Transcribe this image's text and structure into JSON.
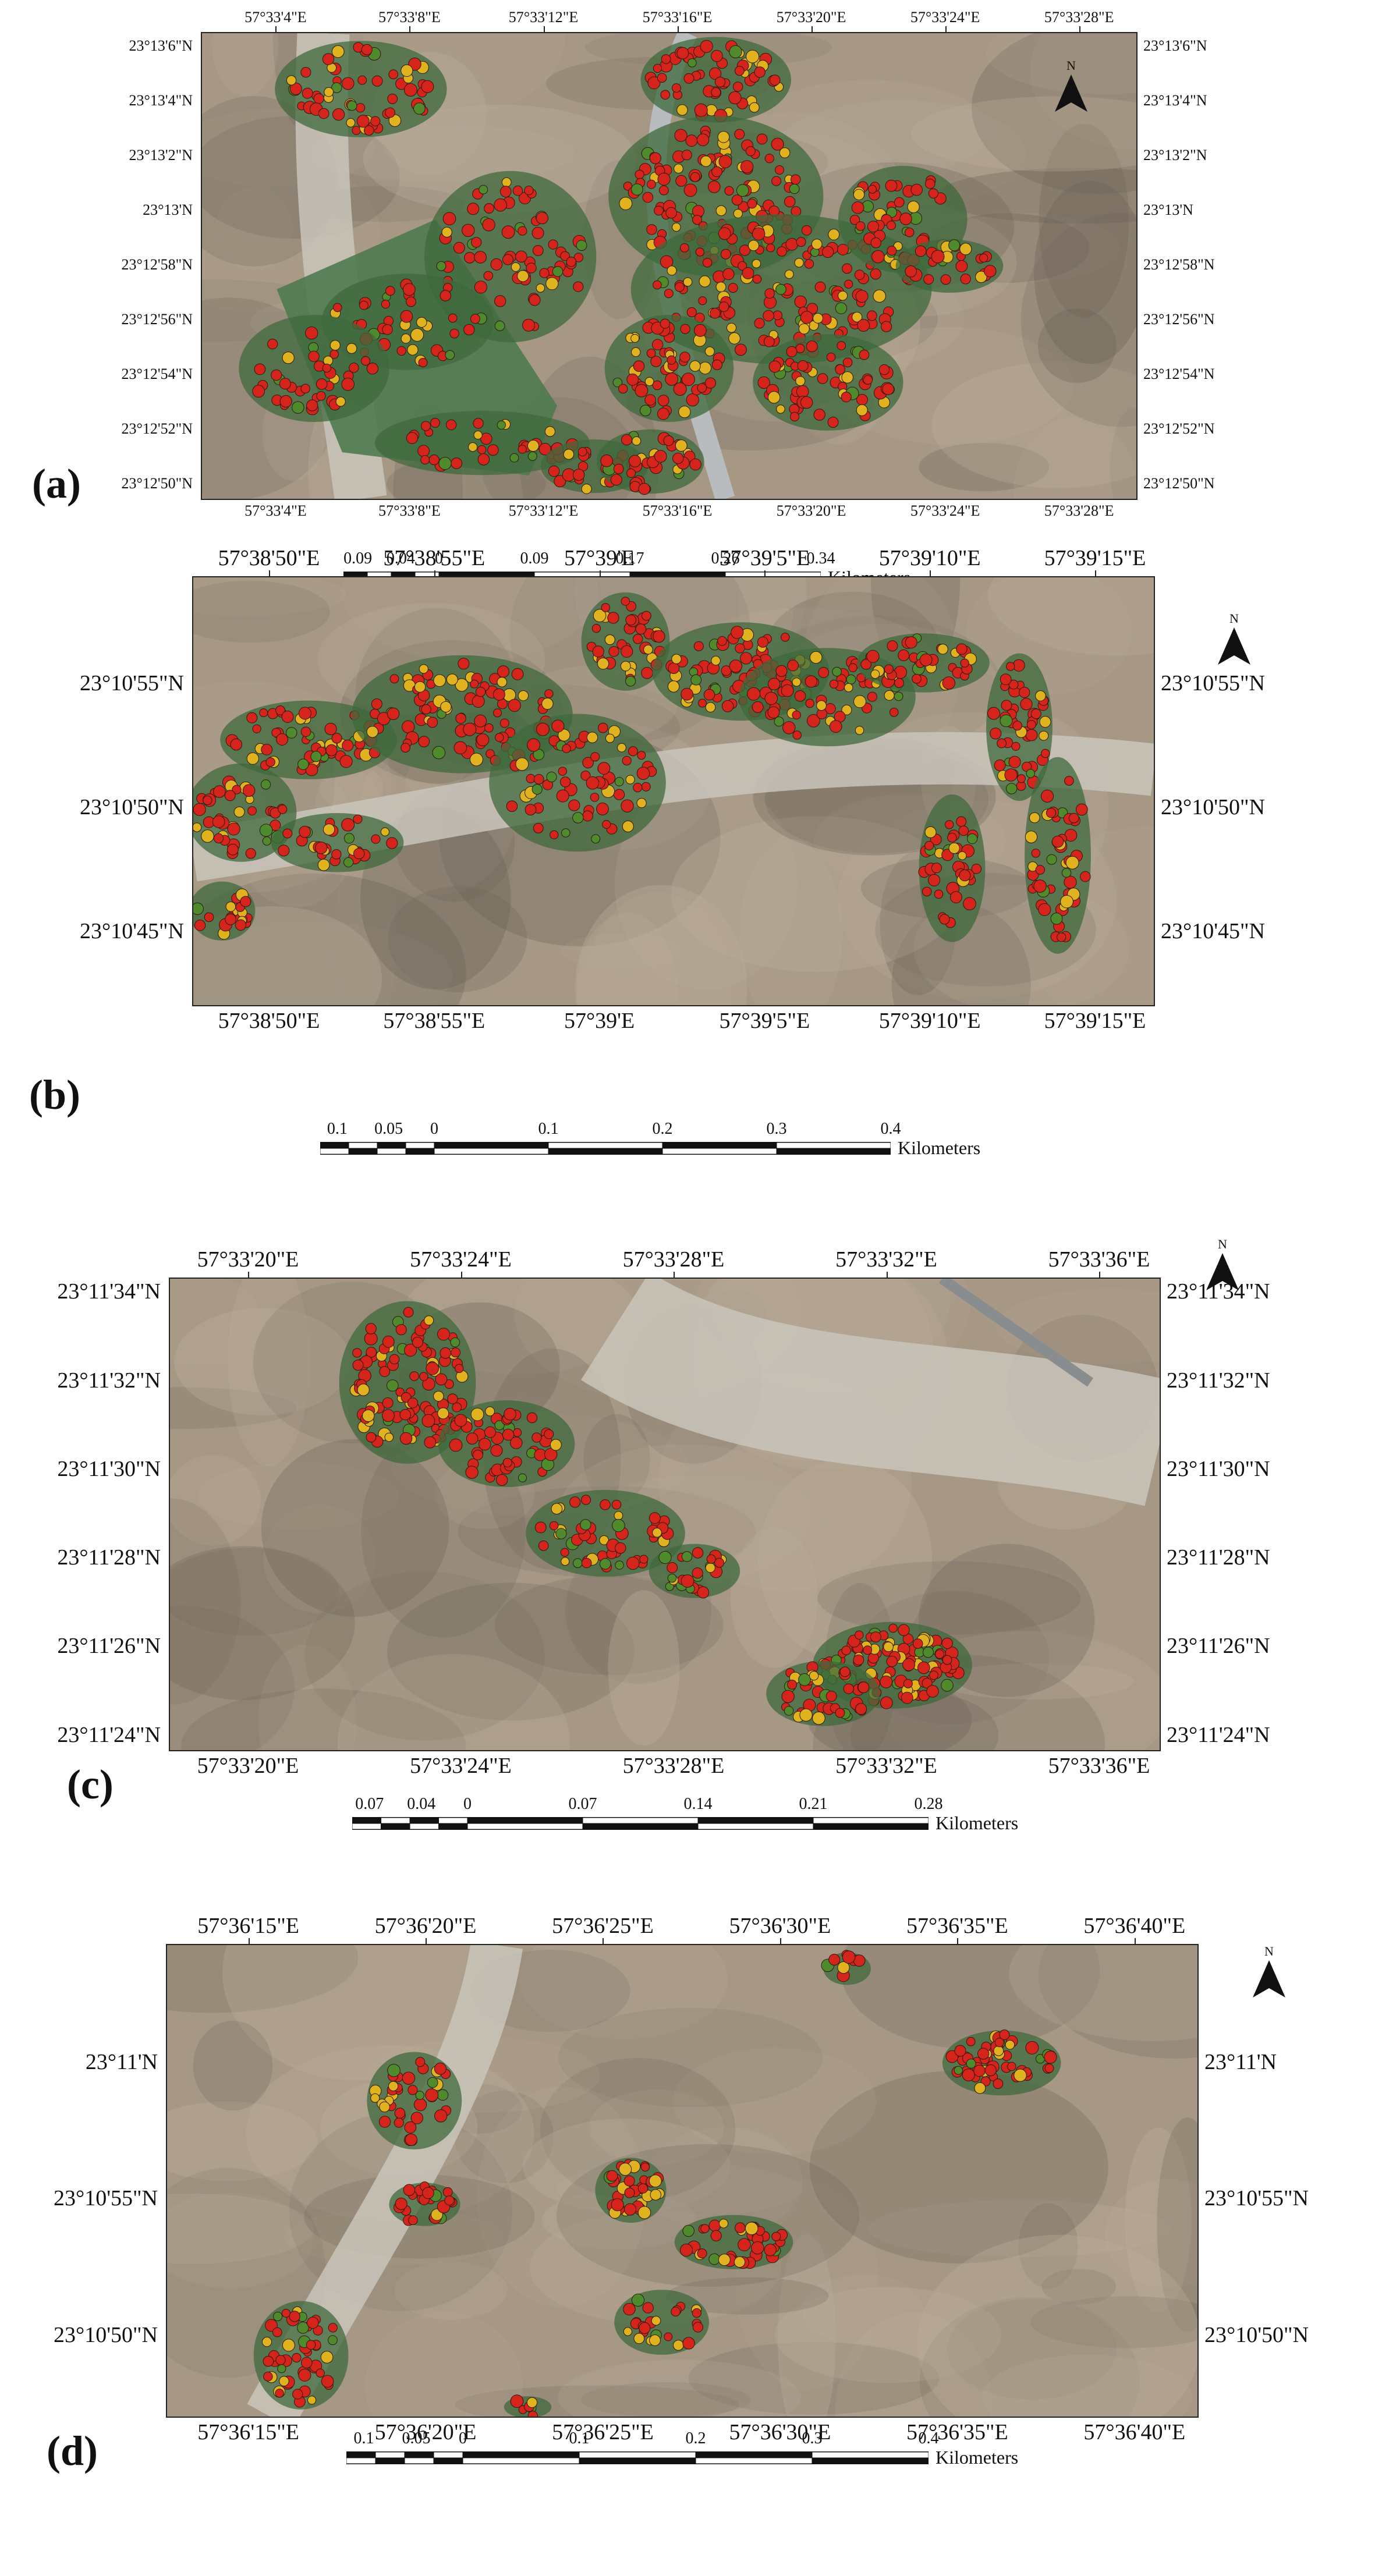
{
  "panels": [
    {
      "label": "(a)",
      "north": "N",
      "top_coords": [
        "57°33'4\"E",
        "57°33'8\"E",
        "57°33'12\"E",
        "57°33'16\"E",
        "57°33'20\"E",
        "57°33'24\"E",
        "57°33'28\"E"
      ],
      "bottom_coords": [
        "57°33'4\"E",
        "57°33'8\"E",
        "57°33'12\"E",
        "57°33'16\"E",
        "57°33'20\"E",
        "57°33'24\"E",
        "57°33'28\"E"
      ],
      "left_coords": [
        "23°13'6\"N",
        "23°13'4\"N",
        "23°13'2\"N",
        "23°13'N",
        "23°12'58\"N",
        "23°12'56\"N",
        "23°12'54\"N",
        "23°12'52\"N",
        "23°12'50\"N"
      ],
      "right_coords": [
        "23°13'6\"N",
        "23°13'4\"N",
        "23°13'2\"N",
        "23°13'N",
        "23°12'58\"N",
        "23°12'56\"N",
        "23°12'54\"N",
        "23°12'52\"N",
        "23°12'50\"N"
      ],
      "scale_labels": [
        "0.09",
        "0.04",
        "0",
        "0.09",
        "0.17",
        "0.26",
        "0.34"
      ],
      "scale_unit": "Kilometers"
    },
    {
      "label": "(b)",
      "north": "N",
      "top_coords": [
        "57°38'50\"E",
        "57°38'55\"E",
        "57°39'E",
        "57°39'5\"E",
        "57°39'10\"E",
        "57°39'15\"E"
      ],
      "bottom_coords": [
        "57°38'50\"E",
        "57°38'55\"E",
        "57°39'E",
        "57°39'5\"E",
        "57°39'10\"E",
        "57°39'15\"E"
      ],
      "left_coords": [
        "23°10'55\"N",
        "23°10'50\"N",
        "23°10'45\"N"
      ],
      "right_coords": [
        "23°10'55\"N",
        "23°10'50\"N",
        "23°10'45\"N"
      ],
      "scale_labels": [
        "0.1",
        "0.05",
        "0",
        "0.1",
        "0.2",
        "0.3",
        "0.4"
      ],
      "scale_unit": "Kilometers"
    },
    {
      "label": "(c)",
      "north": "N",
      "top_coords": [
        "57°33'20\"E",
        "57°33'24\"E",
        "57°33'28\"E",
        "57°33'32\"E",
        "57°33'36\"E"
      ],
      "bottom_coords": [
        "57°33'20\"E",
        "57°33'24\"E",
        "57°33'28\"E",
        "57°33'32\"E",
        "57°33'36\"E"
      ],
      "left_coords": [
        "23°11'34\"N",
        "23°11'32\"N",
        "23°11'30\"N",
        "23°11'28\"N",
        "23°11'26\"N",
        "23°11'24\"N"
      ],
      "right_coords": [
        "23°11'34\"N",
        "23°11'32\"N",
        "23°11'30\"N",
        "23°11'28\"N",
        "23°11'26\"N",
        "23°11'24\"N"
      ],
      "scale_labels": [
        "0.07",
        "0.04",
        "0",
        "0.07",
        "0.14",
        "0.21",
        "0.28"
      ],
      "scale_unit": "Kilometers"
    },
    {
      "label": "(d)",
      "north": "N",
      "top_coords": [
        "57°36'15\"E",
        "57°36'20\"E",
        "57°36'25\"E",
        "57°36'30\"E",
        "57°36'35\"E",
        "57°36'40\"E"
      ],
      "bottom_coords": [
        "57°36'15\"E",
        "57°36'20\"E",
        "57°36'25\"E",
        "57°36'30\"E",
        "57°36'35\"E",
        "57°36'40\"E"
      ],
      "left_coords": [
        "23°11'N",
        "23°10'55\"N",
        "23°10'50\"N"
      ],
      "right_coords": [
        "23°11'N",
        "23°10'55\"N",
        "23°10'50\"N"
      ],
      "scale_labels": [
        "0.1",
        "0.05",
        "0",
        "0.1",
        "0.2",
        "0.3",
        "0.4"
      ],
      "scale_unit": "Kilometers"
    }
  ],
  "colors": {
    "terrain": "#a79886",
    "terrain_dark": "#6d6458",
    "wadi": "#c9c4bb",
    "vegetation": "#3f6a3c",
    "tree_red": "#d4241c",
    "tree_yellow": "#e0b21f",
    "tree_green": "#4f8a2c",
    "road": "#b9bcbe"
  }
}
